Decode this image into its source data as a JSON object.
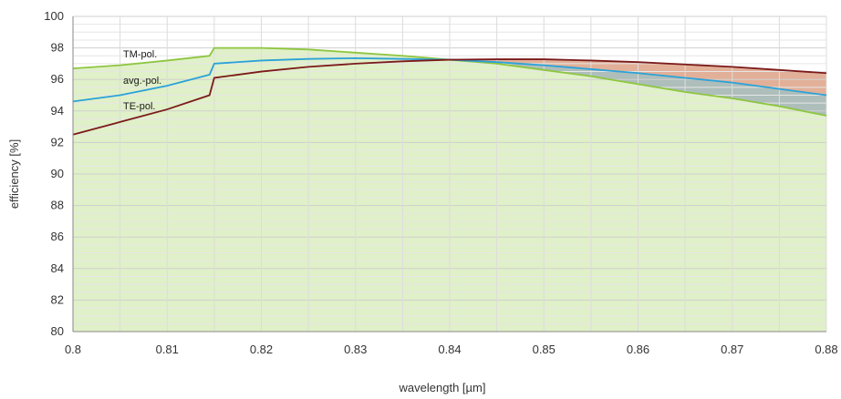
{
  "chart_data": {
    "type": "area",
    "title": "",
    "xlabel": "wavelength [µm]",
    "ylabel": "efficiency [%]",
    "xlim": [
      0.8,
      0.88
    ],
    "ylim": [
      80,
      100
    ],
    "xticks": [
      0.8,
      0.81,
      0.82,
      0.83,
      0.84,
      0.85,
      0.86,
      0.87,
      0.88
    ],
    "xtick_labels": [
      "0.8",
      "0.81",
      "0.82",
      "0.83",
      "0.84",
      "0.85",
      "0.86",
      "0.87",
      "0.88"
    ],
    "yticks": [
      80,
      82,
      84,
      86,
      88,
      90,
      92,
      94,
      96,
      98,
      100
    ],
    "ytick_labels": [
      "80",
      "82",
      "84",
      "86",
      "88",
      "90",
      "92",
      "94",
      "96",
      "98",
      "100"
    ],
    "grid": true,
    "legend": "inline labels at left",
    "series": [
      {
        "name": "TM-pol.",
        "color": "#8dc63f",
        "x": [
          0.8,
          0.805,
          0.81,
          0.8145,
          0.815,
          0.82,
          0.825,
          0.83,
          0.835,
          0.84,
          0.845,
          0.85,
          0.855,
          0.86,
          0.865,
          0.87,
          0.875,
          0.88
        ],
        "values": [
          96.7,
          96.9,
          97.2,
          97.5,
          98.0,
          98.0,
          97.9,
          97.7,
          97.5,
          97.25,
          97.0,
          96.6,
          96.2,
          95.7,
          95.2,
          94.8,
          94.3,
          93.7
        ]
      },
      {
        "name": "avg.-pol.",
        "color": "#2aa2d9",
        "x": [
          0.8,
          0.805,
          0.81,
          0.8145,
          0.815,
          0.82,
          0.825,
          0.83,
          0.835,
          0.84,
          0.845,
          0.85,
          0.855,
          0.86,
          0.865,
          0.87,
          0.875,
          0.88
        ],
        "values": [
          94.6,
          95.0,
          95.6,
          96.3,
          97.0,
          97.2,
          97.3,
          97.35,
          97.3,
          97.25,
          97.1,
          96.9,
          96.65,
          96.4,
          96.1,
          95.8,
          95.4,
          95.0
        ]
      },
      {
        "name": "TE-pol.",
        "color": "#7b1a1a",
        "x": [
          0.8,
          0.805,
          0.81,
          0.8145,
          0.815,
          0.82,
          0.825,
          0.83,
          0.835,
          0.84,
          0.845,
          0.85,
          0.855,
          0.86,
          0.865,
          0.87,
          0.875,
          0.88
        ],
        "values": [
          92.5,
          93.3,
          94.1,
          95.0,
          96.1,
          96.5,
          96.8,
          97.0,
          97.15,
          97.25,
          97.28,
          97.28,
          97.2,
          97.1,
          96.95,
          96.8,
          96.6,
          96.4
        ]
      }
    ],
    "fills": {
      "under_curve": "#e0f0c8",
      "te_above_avg": "#e2a892",
      "avg_above_tm": "#a8b8b8"
    }
  }
}
